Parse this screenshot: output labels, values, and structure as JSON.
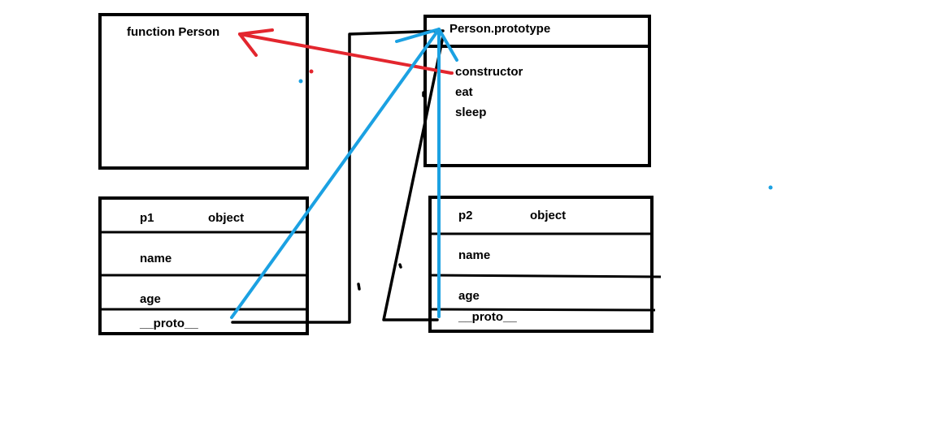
{
  "function_box": {
    "title": "function Person"
  },
  "prototype_box": {
    "title": "Person.prototype",
    "members": [
      "constructor",
      "eat",
      "sleep"
    ]
  },
  "p1_box": {
    "name": "p1",
    "type": "object",
    "fields": [
      "name",
      "age",
      "__proto__"
    ]
  },
  "p2_box": {
    "name": "p2",
    "type": "object",
    "fields": [
      "name",
      "age",
      "__proto__"
    ]
  },
  "colors": {
    "box_stroke": "#000000",
    "constructor_arrow": "#e3262e",
    "proto_arrow": "#1ba1e2"
  }
}
